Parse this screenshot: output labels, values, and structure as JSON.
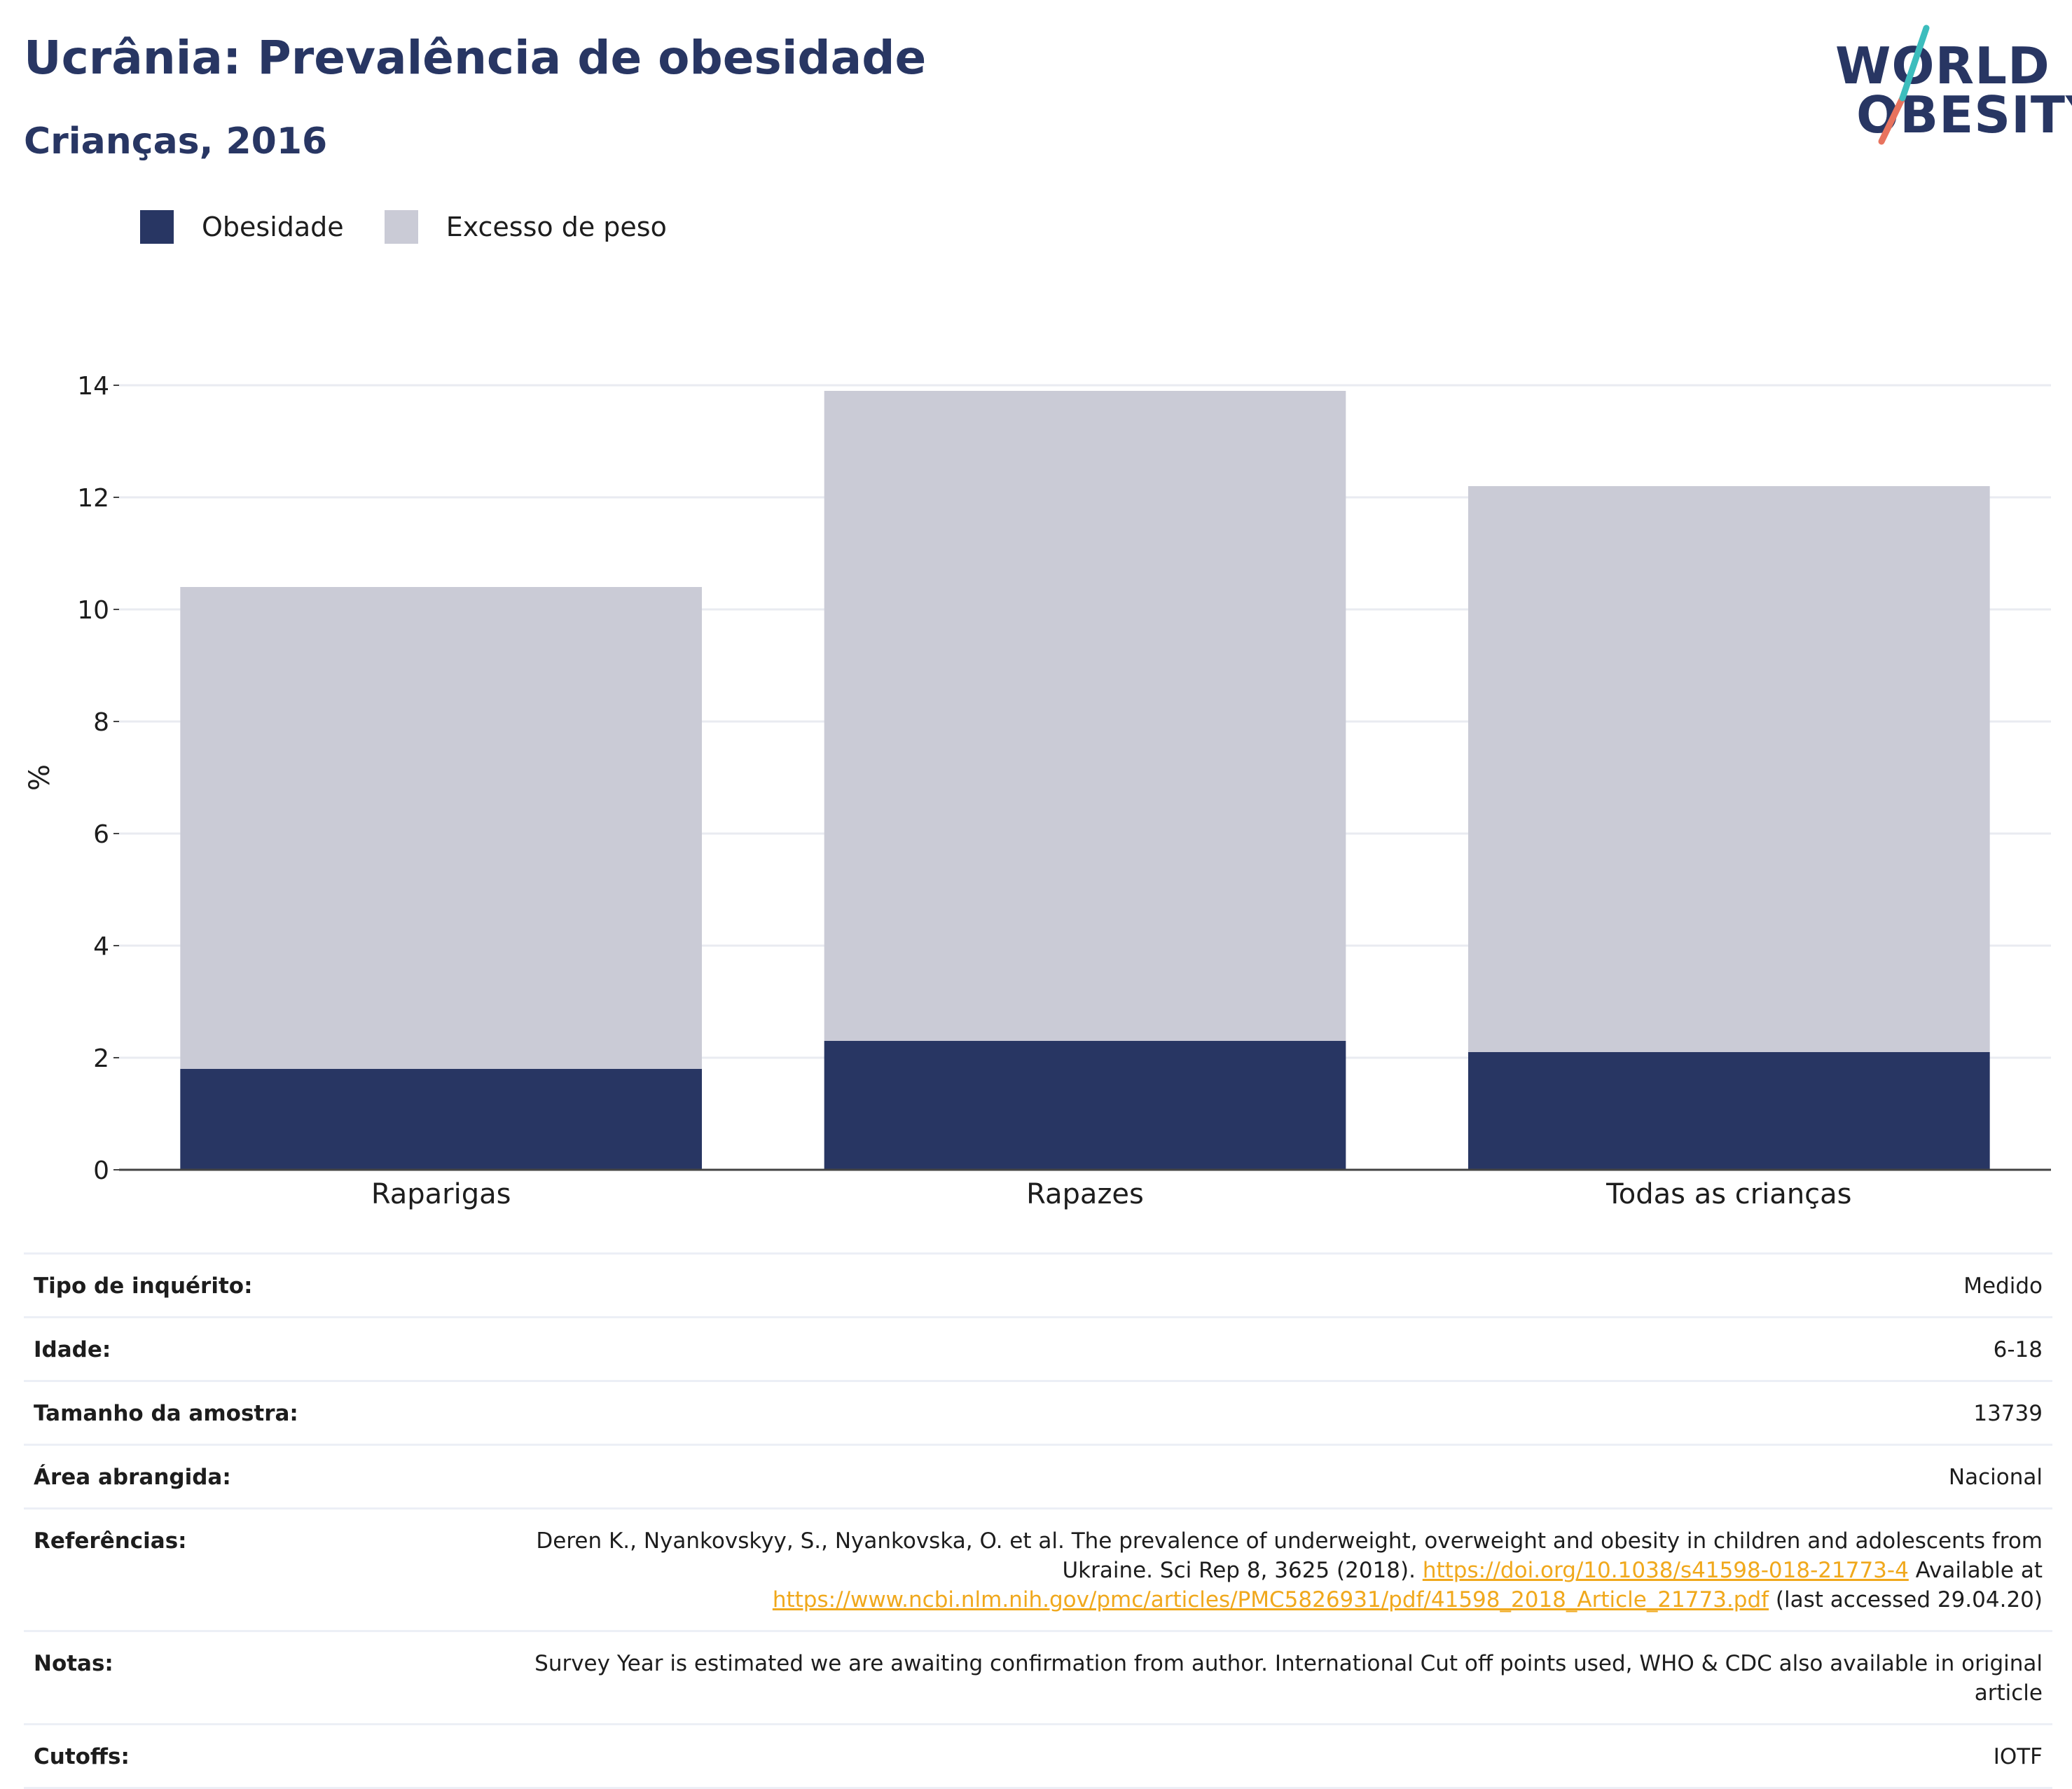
{
  "title": "Ucrânia: Prevalência de obesidade",
  "subtitle": "Crianças, 2016",
  "logo": {
    "line1": "WORLD",
    "line2": "OBESITY"
  },
  "legend": [
    {
      "label": "Obesidade",
      "color": "#283663"
    },
    {
      "label": "Excesso de peso",
      "color": "#cacbd6"
    }
  ],
  "chart_data": {
    "type": "bar",
    "stacked": true,
    "categories": [
      "Raparigas",
      "Rapazes",
      "Todas as crianças"
    ],
    "series": [
      {
        "name": "Obesidade",
        "values": [
          1.8,
          2.3,
          2.1
        ],
        "color": "#283663"
      },
      {
        "name": "Excesso de peso",
        "values": [
          8.6,
          11.6,
          10.1
        ],
        "color": "#cacbd6"
      }
    ],
    "ylabel": "%",
    "ylim": [
      0,
      14
    ],
    "yticks": [
      0,
      2,
      4,
      6,
      8,
      10,
      12,
      14
    ],
    "grid": true,
    "legend_position": "top-left"
  },
  "meta": [
    {
      "key": "Tipo de inquérito:",
      "value": "Medido"
    },
    {
      "key": "Idade:",
      "value": "6-18"
    },
    {
      "key": "Tamanho da amostra:",
      "value": "13739"
    },
    {
      "key": "Área abrangida:",
      "value": "Nacional"
    },
    {
      "key": "Referências:",
      "value": "Deren K., Nyankovskyy, S., Nyankovska, O. et al. The prevalence of underweight, overweight and obesity in children and adolescents from Ukraine. Sci Rep 8, 3625 (2018).",
      "link1": "https://doi.org/10.1038/s41598-018-21773-4",
      "middle": " Available at ",
      "link2": "https://www.ncbi.nlm.nih.gov/pmc/articles/PMC5826931/pdf/41598_2018_Article_21773.pdf",
      "tail": " (last accessed 29.04.20)"
    },
    {
      "key": "Notas:",
      "value": "Survey Year is estimated we are awaiting confirmation from author. International Cut off points used, WHO & CDC also available in original article"
    },
    {
      "key": "Cutoffs:",
      "value": "IOTF"
    }
  ]
}
